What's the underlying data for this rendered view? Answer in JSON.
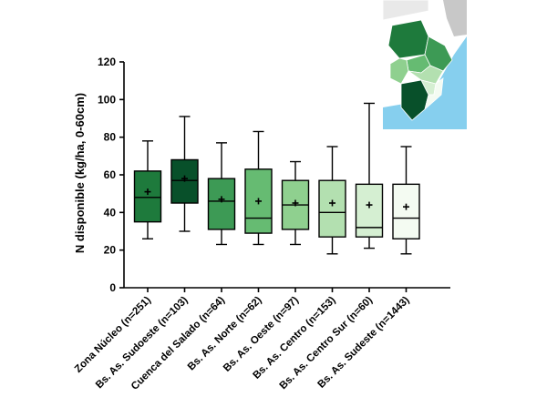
{
  "chart_data": {
    "type": "boxplot",
    "ylabel": "N disponible (kg/ha, 0-60cm)",
    "ylim": [
      0,
      120
    ],
    "yticks": [
      0,
      20,
      40,
      60,
      80,
      100,
      120
    ],
    "categories": [
      "Zona Núcleo (n=251)",
      "Bs. As. Sudoeste (n=103)",
      "Cuenca del Salado (n=64)",
      "Bs. As. Norte (n=62)",
      "Bs. As. Oeste (n=97)",
      "Bs. As. Centro (n=153)",
      "Bs. As. Centro Sur (n=60)",
      "Bs. As. Sudeste (n=1443)"
    ],
    "boxes": [
      {
        "min": 26,
        "q1": 35,
        "median": 48,
        "q3": 62,
        "max": 78,
        "mean": 51,
        "color": "#1e7a3c"
      },
      {
        "min": 30,
        "q1": 45,
        "median": 57,
        "q3": 68,
        "max": 91,
        "mean": 58,
        "color": "#08502a"
      },
      {
        "min": 23,
        "q1": 31,
        "median": 46,
        "q3": 58,
        "max": 77,
        "mean": 47,
        "color": "#3d9a55"
      },
      {
        "min": 23,
        "q1": 29,
        "median": 37,
        "q3": 63,
        "max": 83,
        "mean": 46,
        "color": "#66bb72"
      },
      {
        "min": 23,
        "q1": 31,
        "median": 44,
        "q3": 57,
        "max": 67,
        "mean": 45,
        "color": "#8fd08f"
      },
      {
        "min": 18,
        "q1": 27,
        "median": 40,
        "q3": 57,
        "max": 75,
        "mean": 45,
        "color": "#b3e0b0"
      },
      {
        "min": 21,
        "q1": 27,
        "median": 32,
        "q3": 55,
        "max": 98,
        "mean": 44,
        "color": "#d5efd2"
      },
      {
        "min": 18,
        "q1": 26,
        "median": 37,
        "q3": 55,
        "max": 75,
        "mean": 43,
        "color": "#f4fbf2"
      }
    ]
  },
  "inset_map": {
    "regions": [
      {
        "color": "#1e7a3c"
      },
      {
        "color": "#08502a"
      },
      {
        "color": "#3d9a55"
      },
      {
        "color": "#66bb72"
      },
      {
        "color": "#8fd08f"
      },
      {
        "color": "#b3e0b0"
      },
      {
        "color": "#d5efd2"
      },
      {
        "color": "#f4fbf2"
      }
    ],
    "sea_color": "#86cfee",
    "land_color": "#c8c8c8"
  }
}
